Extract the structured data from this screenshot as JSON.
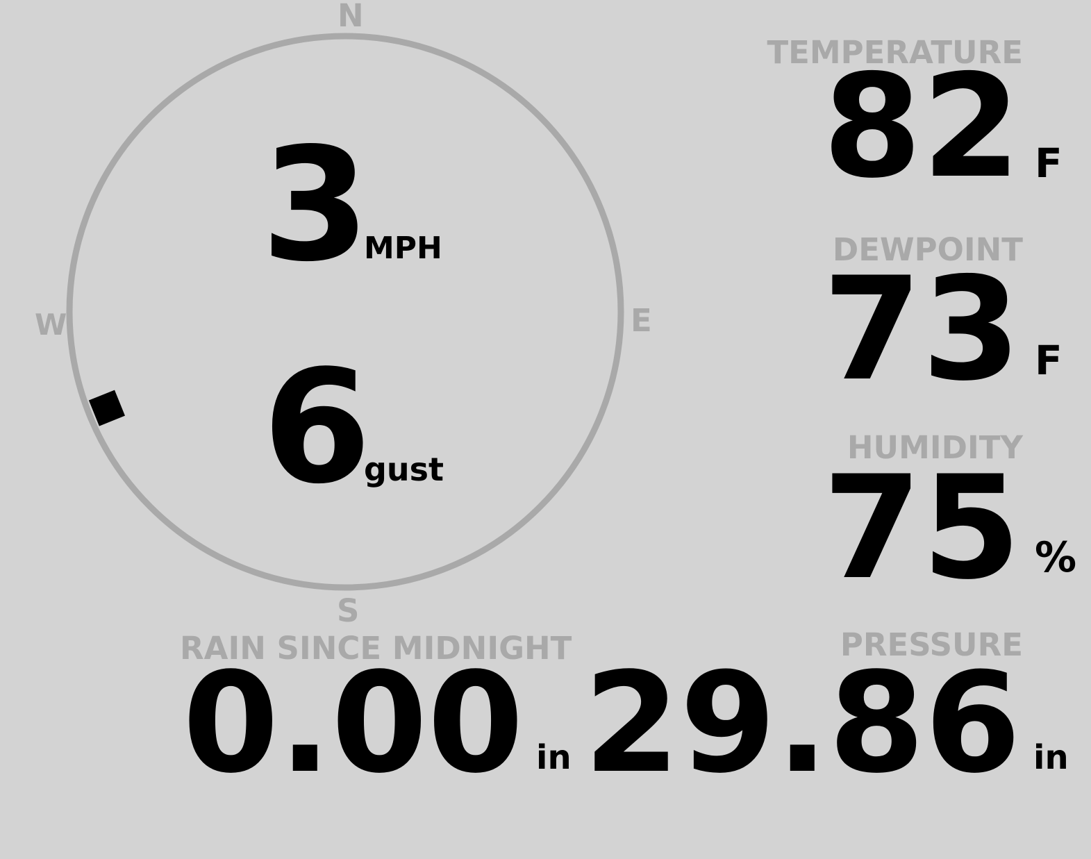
{
  "wind": {
    "speed": "3",
    "speed_unit": "MPH",
    "gust": "6",
    "gust_label": "gust",
    "direction_deg": 248,
    "compass": {
      "n": "N",
      "e": "E",
      "s": "S",
      "w": "W"
    }
  },
  "temperature": {
    "label": "TEMPERATURE",
    "value": "82",
    "unit": "F"
  },
  "dewpoint": {
    "label": "DEWPOINT",
    "value": "73",
    "unit": "F"
  },
  "humidity": {
    "label": "HUMIDITY",
    "value": "75",
    "unit": "%"
  },
  "pressure": {
    "label": "PRESSURE",
    "value": "29.86",
    "unit": "in"
  },
  "rain": {
    "label": "RAIN SINCE MIDNIGHT",
    "value": "0.00",
    "unit": "in"
  },
  "colors": {
    "background": "#d3d3d3",
    "label": "#a9a9a9",
    "value": "#000000"
  }
}
